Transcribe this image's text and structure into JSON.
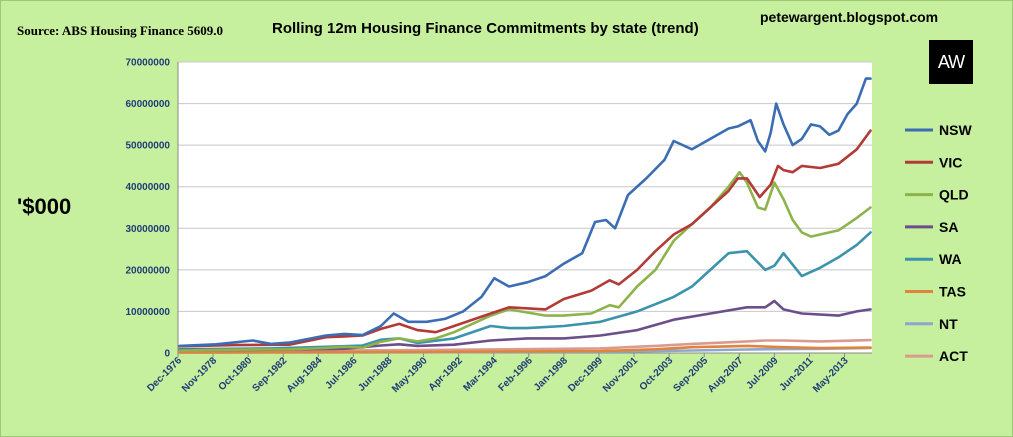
{
  "source": "Source: ABS Housing Finance 5609.0",
  "blog": "petewargent.blogspot.com",
  "logo_text": "AW",
  "chart_data": {
    "type": "line",
    "title": "Rolling 12m Housing Finance Commitments by state (trend)",
    "ylabel": "'$000",
    "xlabel": "",
    "ylim": [
      0,
      70000000
    ],
    "yticks": [
      0,
      10000000,
      20000000,
      30000000,
      40000000,
      50000000,
      60000000,
      70000000
    ],
    "xlim": [
      1976.917,
      2014.833
    ],
    "x_tick_labels": [
      "Dec-1976",
      "Nov-1978",
      "Oct-1980",
      "Sep-1982",
      "Aug-1984",
      "Jul-1986",
      "Jun-1988",
      "May-1990",
      "Apr-1992",
      "Mar-1994",
      "Feb-1996",
      "Jan-1998",
      "Dec-1999",
      "Nov-2001",
      "Oct-2003",
      "Sep-2005",
      "Aug-2007",
      "Jul-2009",
      "Jun-2011",
      "May-2013"
    ],
    "x_tick_years": [
      1976.917,
      1978.833,
      1980.75,
      1982.667,
      1984.583,
      1986.5,
      1988.417,
      1990.333,
      1992.25,
      1994.167,
      1996.083,
      1998.0,
      1999.917,
      2001.833,
      2003.75,
      2005.667,
      2007.583,
      2009.5,
      2011.417,
      2013.333
    ],
    "legend_position": "right",
    "grid": "horizontal",
    "series": [
      {
        "name": "NSW",
        "color": "#3b6db3",
        "x": [
          1977,
          1979,
          1981,
          1982,
          1983,
          1985,
          1986,
          1987,
          1988,
          1988.7,
          1989.5,
          1990.5,
          1991.5,
          1992.5,
          1993.5,
          1994.2,
          1995,
          1996,
          1997,
          1998,
          1999,
          1999.7,
          2000.3,
          2000.8,
          2001.5,
          2002.5,
          2003.5,
          2004,
          2005,
          2006,
          2007,
          2007.5,
          2008.2,
          2008.6,
          2009,
          2009.3,
          2009.6,
          2010,
          2010.5,
          2011,
          2011.5,
          2012,
          2012.5,
          2013,
          2013.5,
          2014,
          2014.5,
          2014.75
        ],
        "values": [
          1700000,
          2100000,
          3000000,
          2200000,
          2500000,
          4200000,
          4600000,
          4300000,
          6500000,
          9500000,
          7500000,
          7500000,
          8200000,
          10000000,
          13500000,
          18000000,
          16000000,
          17000000,
          18500000,
          21500000,
          24000000,
          31500000,
          32000000,
          30000000,
          38000000,
          42000000,
          46500000,
          51000000,
          49000000,
          51500000,
          54000000,
          54500000,
          56000000,
          51000000,
          48500000,
          53000000,
          60000000,
          55000000,
          50000000,
          51500000,
          55000000,
          54500000,
          52500000,
          53500000,
          57500000,
          60000000,
          66000000,
          66000000
        ]
      },
      {
        "name": "VIC",
        "color": "#b23b37",
        "x": [
          1977,
          1980,
          1983,
          1985,
          1986,
          1987,
          1988,
          1989,
          1990,
          1991,
          1992,
          1994,
          1995,
          1997,
          1998,
          1999.5,
          2000.5,
          2001,
          2002,
          2003,
          2004,
          2005,
          2006,
          2007,
          2007.5,
          2008,
          2008.7,
          2009.3,
          2009.7,
          2010,
          2010.5,
          2011,
          2012,
          2013,
          2014,
          2014.75
        ],
        "values": [
          1600000,
          1900000,
          2000000,
          3800000,
          4000000,
          4200000,
          5800000,
          7000000,
          5500000,
          5000000,
          6500000,
          9500000,
          11000000,
          10500000,
          13000000,
          15000000,
          17500000,
          16500000,
          20000000,
          24500000,
          28500000,
          31000000,
          35000000,
          39000000,
          42000000,
          42000000,
          37500000,
          40500000,
          45000000,
          44000000,
          43500000,
          45000000,
          44500000,
          45500000,
          49000000,
          53500000
        ]
      },
      {
        "name": "QLD",
        "color": "#8db34a",
        "x": [
          1977,
          1980,
          1983,
          1985,
          1986,
          1987,
          1988,
          1989,
          1990,
          1991,
          1992,
          1994,
          1995,
          1997,
          1998,
          1999.5,
          2000.5,
          2001,
          2002,
          2003,
          2004,
          2005,
          2006,
          2007,
          2007.6,
          2008,
          2008.6,
          2009,
          2009.5,
          2010,
          2010.5,
          2011,
          2011.5,
          2012,
          2013,
          2014,
          2014.75
        ],
        "values": [
          600000,
          800000,
          900000,
          1200000,
          1500000,
          1300000,
          2700000,
          3500000,
          2800000,
          3500000,
          5000000,
          9000000,
          10500000,
          9000000,
          9000000,
          9500000,
          11500000,
          11000000,
          16000000,
          20000000,
          27000000,
          31000000,
          35000000,
          40000000,
          43500000,
          41000000,
          35000000,
          34500000,
          41000000,
          37000000,
          32000000,
          29000000,
          28000000,
          28500000,
          29500000,
          32500000,
          35000000
        ]
      },
      {
        "name": "SA",
        "color": "#6b4e8a",
        "x": [
          1977,
          1982,
          1986,
          1988,
          1989,
          1990,
          1992,
          1994,
          1996,
          1998,
          2000,
          2002,
          2004,
          2006,
          2008,
          2009,
          2009.5,
          2010,
          2011,
          2013,
          2014,
          2014.75
        ],
        "values": [
          700000,
          800000,
          1000000,
          1800000,
          2100000,
          1700000,
          2000000,
          3000000,
          3500000,
          3500000,
          4200000,
          5500000,
          8000000,
          9500000,
          11000000,
          11000000,
          12500000,
          10500000,
          9500000,
          9000000,
          10000000,
          10500000
        ]
      },
      {
        "name": "WA",
        "color": "#3b93ac",
        "x": [
          1977,
          1982,
          1985,
          1987,
          1988,
          1989,
          1990,
          1992,
          1994,
          1995,
          1996,
          1998,
          2000,
          2002,
          2004,
          2005,
          2006,
          2007,
          2008,
          2009,
          2009.5,
          2010,
          2011,
          2012,
          2013,
          2014,
          2014.75
        ],
        "values": [
          900000,
          1100000,
          1500000,
          1800000,
          3200000,
          3500000,
          2400000,
          3500000,
          6500000,
          6000000,
          6000000,
          6500000,
          7500000,
          10000000,
          13500000,
          16000000,
          20000000,
          24000000,
          24500000,
          20000000,
          21000000,
          24000000,
          18500000,
          20500000,
          23000000,
          26000000,
          29000000
        ]
      },
      {
        "name": "TAS",
        "color": "#e0843b",
        "x": [
          1977,
          1985,
          1990,
          1995,
          2000,
          2003,
          2005,
          2008,
          2010,
          2012,
          2014.75
        ],
        "values": [
          150000,
          200000,
          250000,
          350000,
          450000,
          900000,
          1400000,
          1700000,
          1400000,
          1200000,
          1300000
        ]
      },
      {
        "name": "NT",
        "color": "#8fa6cf",
        "x": [
          1977,
          1985,
          1990,
          1995,
          2000,
          2005,
          2008,
          2010,
          2012,
          2014.75
        ],
        "values": [
          100000,
          150000,
          180000,
          250000,
          300000,
          600000,
          850000,
          950000,
          1000000,
          1200000
        ]
      },
      {
        "name": "ACT",
        "color": "#d99b8f",
        "x": [
          1977,
          1980,
          1985,
          1990,
          1995,
          2000,
          2003,
          2005,
          2008,
          2009,
          2010,
          2012,
          2014.75
        ],
        "values": [
          300000,
          400000,
          600000,
          700000,
          900000,
          1100000,
          1700000,
          2200000,
          2800000,
          3000000,
          3000000,
          2800000,
          3100000
        ]
      }
    ]
  }
}
